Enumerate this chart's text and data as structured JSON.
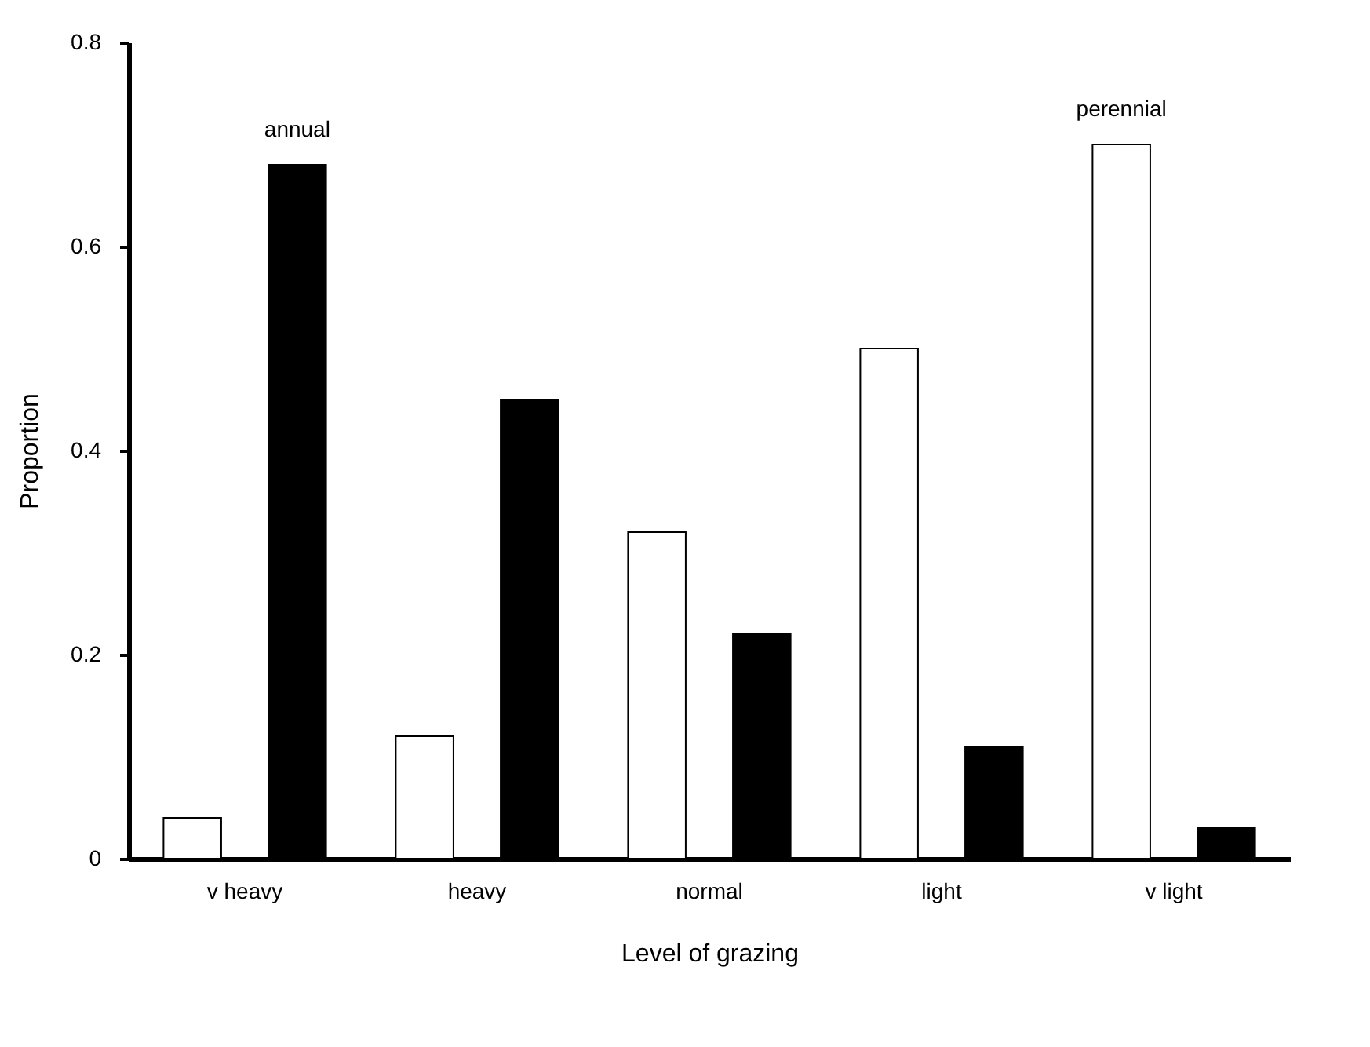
{
  "chart_data": {
    "type": "bar",
    "xlabel": "Level of grazing",
    "ylabel": "Proportion",
    "categories": [
      "v heavy",
      "heavy",
      "normal",
      "light",
      "v light"
    ],
    "series": [
      {
        "name": "perennial",
        "color": "#ffffff",
        "values": [
          0.04,
          0.12,
          0.32,
          0.5,
          0.7
        ]
      },
      {
        "name": "annual",
        "color": "#000000",
        "values": [
          0.68,
          0.45,
          0.22,
          0.11,
          0.03
        ]
      }
    ],
    "ylim": [
      0,
      0.8
    ],
    "yticks": [
      0,
      0.2,
      0.4,
      0.6,
      0.8
    ],
    "grid": false,
    "legend": false
  }
}
